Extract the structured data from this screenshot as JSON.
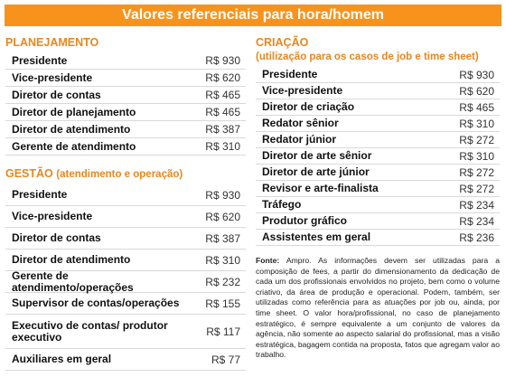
{
  "header": {
    "title": "Valores referenciais para hora/homem"
  },
  "planejamento": {
    "title": "PLANEJAMENTO",
    "rows": [
      {
        "role": "Presidente",
        "value": "R$ 930"
      },
      {
        "role": "Vice-presidente",
        "value": "R$ 620"
      },
      {
        "role": "Diretor de contas",
        "value": "R$ 465"
      },
      {
        "role": "Diretor de planejamento",
        "value": "R$ 465"
      },
      {
        "role": "Diretor de atendimento",
        "value": "R$ 387"
      },
      {
        "role": "Gerente de atendimento",
        "value": "R$ 310"
      }
    ]
  },
  "gestao": {
    "title": "GESTÃO",
    "subtitle": "(atendimento e operação)",
    "rows": [
      {
        "role": "Presidente",
        "value": "R$ 930"
      },
      {
        "role": "Vice-presidente",
        "value": "R$ 620"
      },
      {
        "role": "Diretor de contas",
        "value": "R$ 387"
      },
      {
        "role": "Diretor de atendimento",
        "value": "R$ 310"
      },
      {
        "role": "Gerente de atendimento/operações",
        "value": "R$ 232"
      },
      {
        "role": "Supervisor de contas/operações",
        "value": "R$ 155"
      },
      {
        "role": "Executivo de contas/ produtor executivo",
        "value": "R$ 117"
      },
      {
        "role": "Auxiliares em geral",
        "value": "R$ 77"
      }
    ]
  },
  "criacao": {
    "title": "CRIAÇÃO",
    "subtitle": "(utilização para os casos de job e time sheet)",
    "rows": [
      {
        "role": "Presidente",
        "value": "R$ 930"
      },
      {
        "role": "Vice-presidente",
        "value": "R$ 620"
      },
      {
        "role": "Diretor de criação",
        "value": "R$ 465"
      },
      {
        "role": "Redator sênior",
        "value": "R$ 310"
      },
      {
        "role": "Redator júnior",
        "value": "R$ 272"
      },
      {
        "role": "Diretor de arte sênior",
        "value": "R$ 310"
      },
      {
        "role": "Diretor de arte júnior",
        "value": "R$ 272"
      },
      {
        "role": "Revisor e arte-finalista",
        "value": "R$ 272"
      },
      {
        "role": "Tráfego",
        "value": "R$ 234"
      },
      {
        "role": "Produtor gráfico",
        "value": "R$ 234"
      },
      {
        "role": "Assistentes em geral",
        "value": "R$ 236"
      }
    ]
  },
  "footnote": {
    "label": "Fonte:",
    "text": "Ampro. As informações devem ser utilizadas para a composição de fees, a partir do dimensionamento da dedicação de cada um dos profissionais envolvidos no projeto, bem como o volume criativo, da área de produção e operacional. Podem, também, ser utilizadas como referência para as atuações por job ou, ainda, por time sheet. O valor hora/profissional, no caso de planejamento estratégico, é sempre equivalente a um conjunto de valores da agência, não somente ao aspecto salarial do profissional, mas a visão estratégica, bagagem contida na proposta, fatos que agregam valor ao trabalho."
  },
  "colors": {
    "accent": "#f7931d",
    "section_title": "#e8871e"
  }
}
